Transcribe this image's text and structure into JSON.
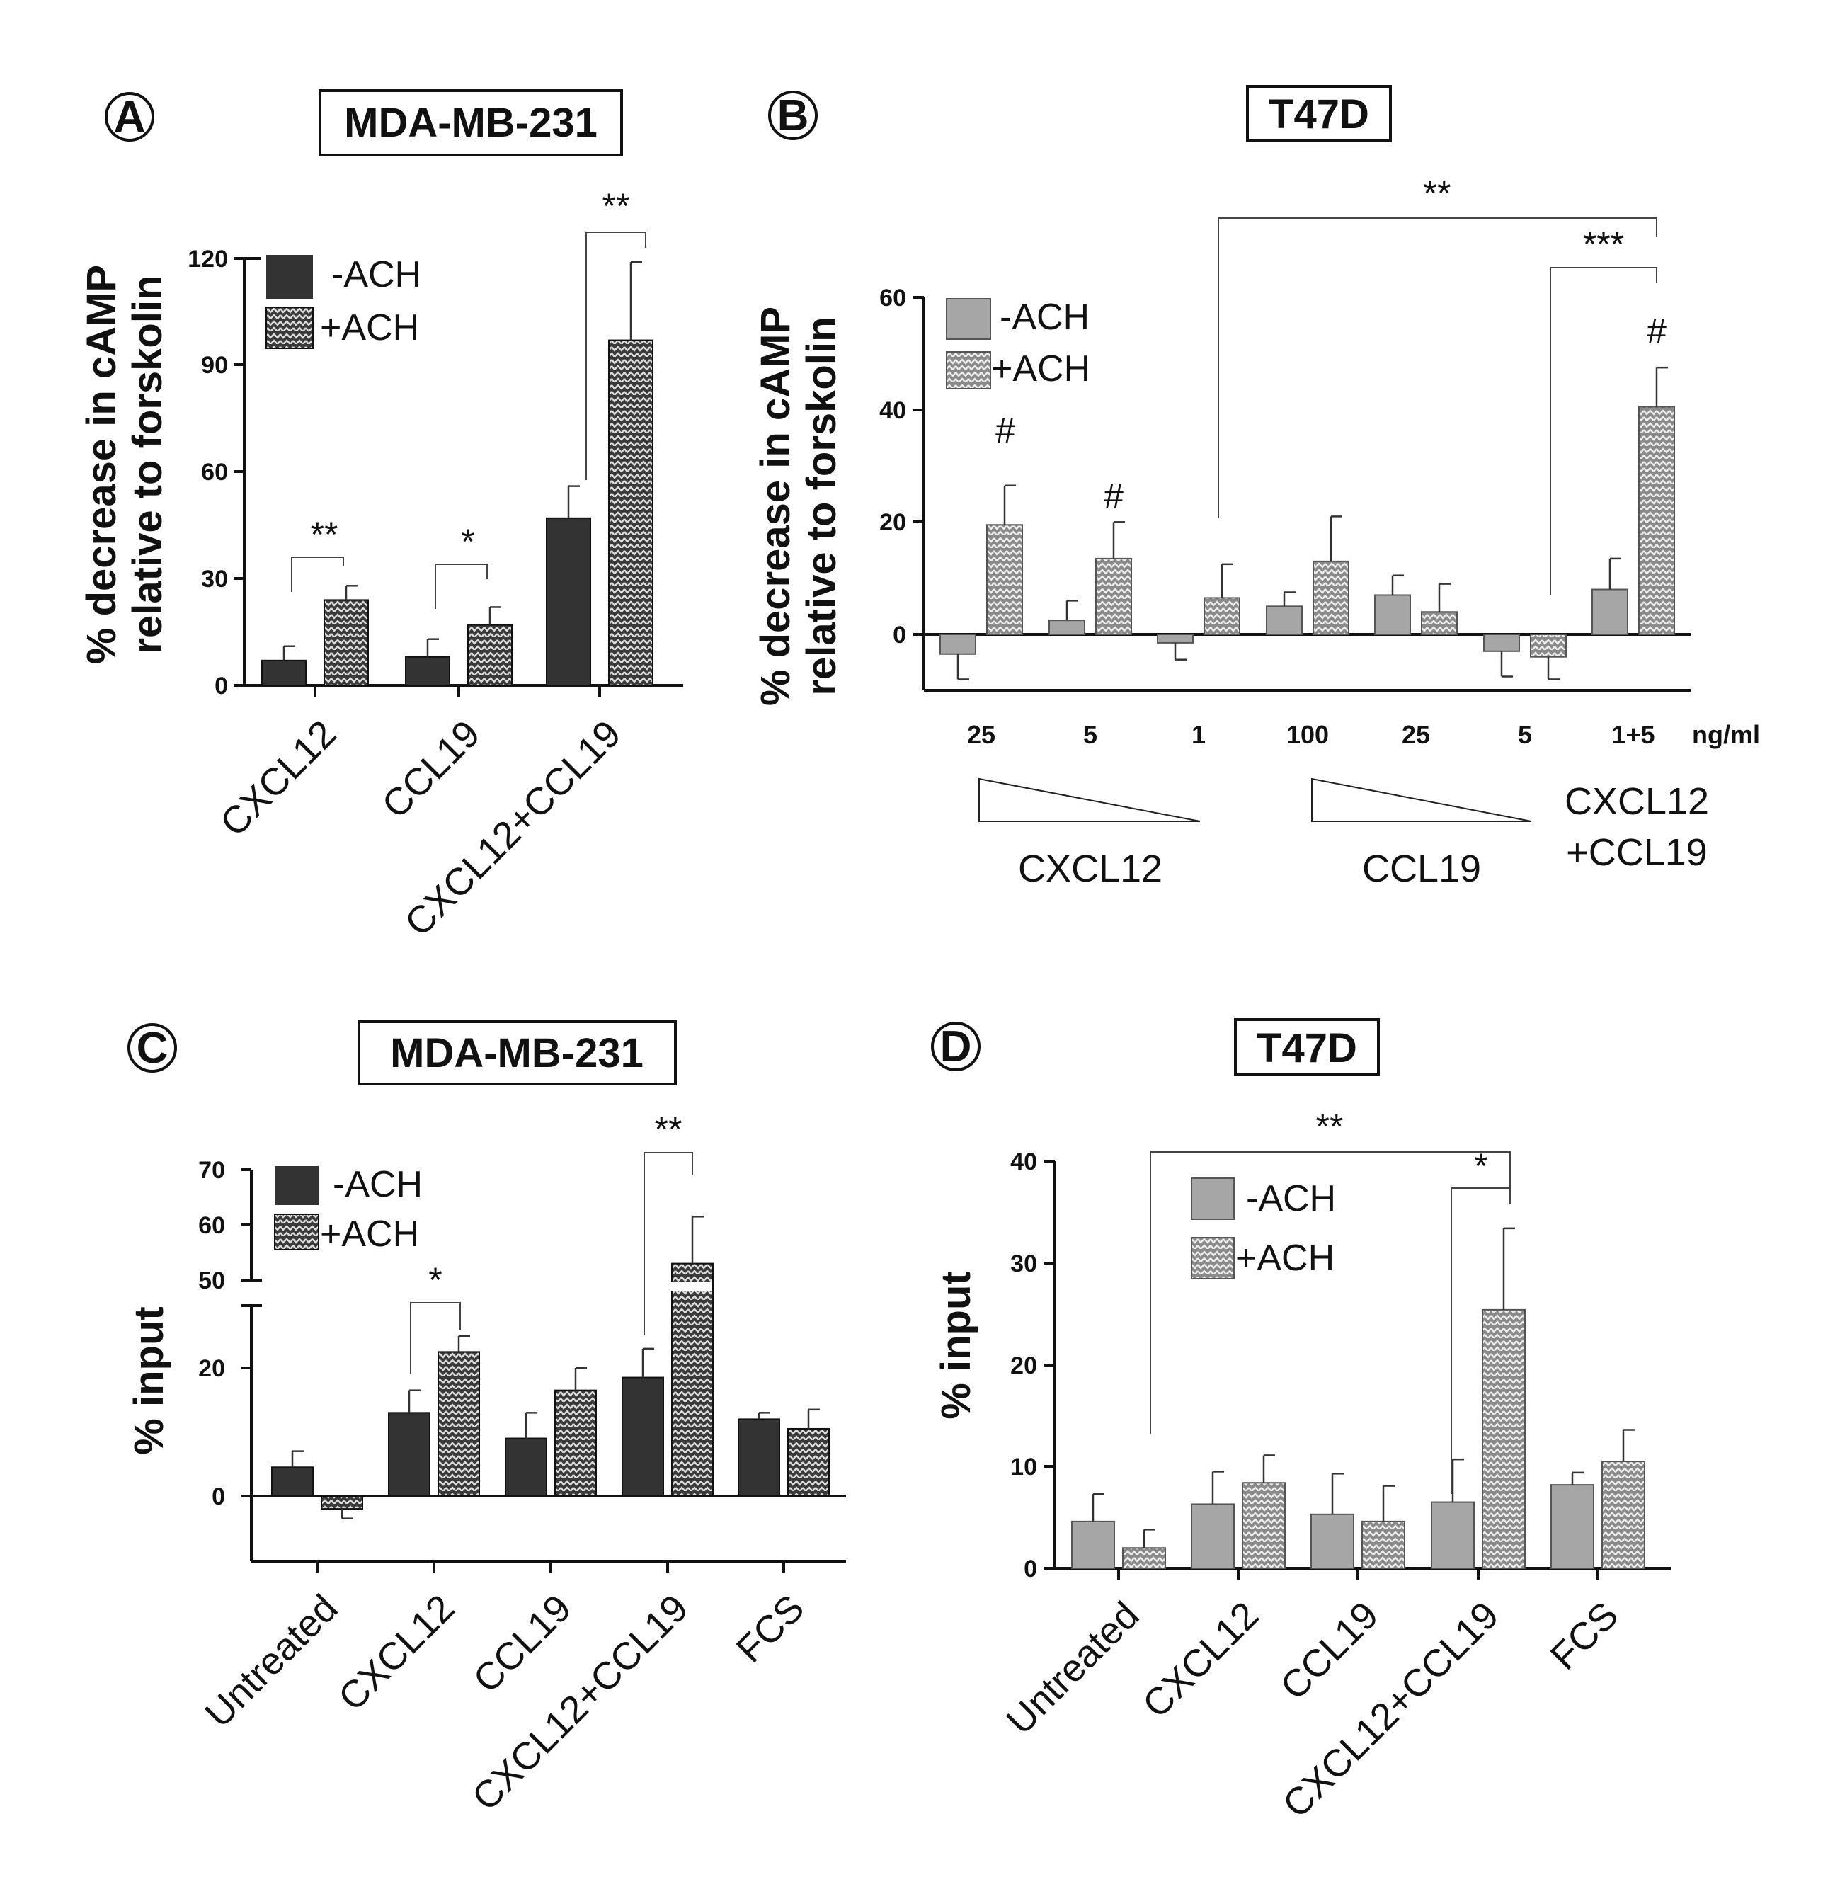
{
  "colors": {
    "dark": "#333333",
    "gray": "#a6a6a6",
    "text": "#111111"
  },
  "chart_data": [
    {
      "panel": "A",
      "type": "bar",
      "title": "MDA-MB-231",
      "ylabel": [
        "% decrease in cAMP",
        "relative to forskolin"
      ],
      "ylim": [
        0,
        120
      ],
      "yticks": [
        "0",
        "30",
        "60",
        "90",
        "120"
      ],
      "categories": [
        "CXCL12",
        "CCL19",
        "CXCL12+CCL19"
      ],
      "series": [
        {
          "name": "-ACH",
          "values": [
            7,
            8,
            47
          ],
          "errors": [
            4,
            5,
            9
          ]
        },
        {
          "name": "+ACH",
          "values": [
            24,
            17,
            97
          ],
          "errors": [
            4,
            5,
            22
          ]
        }
      ],
      "significance": [
        "**",
        "*",
        "**"
      ]
    },
    {
      "panel": "B",
      "type": "bar",
      "title": "T47D",
      "ylabel": [
        "% decrease in cAMP",
        "relative to forskolin"
      ],
      "ylim": [
        -10,
        60
      ],
      "yticks": [
        "0",
        "20",
        "40",
        "60"
      ],
      "categories": [
        "25",
        "5",
        "1",
        "100",
        "25",
        "5",
        "1+5"
      ],
      "unit_label": "ng/ml",
      "groups": [
        "CXCL12",
        "CCL19",
        "CXCL12",
        "+CCL19"
      ],
      "series": [
        {
          "name": "-ACH",
          "values": [
            -3.5,
            2.5,
            -1.5,
            5,
            7,
            -3,
            8
          ],
          "errors": [
            4.5,
            3.5,
            3,
            2.5,
            3.5,
            4.5,
            5.5
          ]
        },
        {
          "name": "+ACH",
          "values": [
            19.5,
            13.5,
            6.5,
            13,
            4,
            -4,
            40.5
          ],
          "errors": [
            7,
            6.5,
            6,
            8,
            5,
            4,
            7
          ]
        }
      ],
      "hash_marks": [
        "#",
        "#",
        "#"
      ],
      "significance": [
        "**",
        "***"
      ]
    },
    {
      "panel": "C",
      "type": "bar",
      "title": "MDA-MB-231",
      "ylabel": "% input",
      "ylim": [
        -10,
        70
      ],
      "yticks": [
        "0",
        "20",
        "50",
        "60",
        "70"
      ],
      "axis_break": [
        30,
        50
      ],
      "categories": [
        "Untreated",
        "CXCL12",
        "CCL19",
        "CXCL12+CCL19",
        "FCS"
      ],
      "series": [
        {
          "name": "-ACH",
          "values": [
            4.5,
            13,
            9,
            18.5,
            12
          ],
          "errors": [
            2.5,
            3.5,
            4,
            4.5,
            1
          ]
        },
        {
          "name": "+ACH",
          "values": [
            -2,
            22.5,
            16.5,
            53,
            10.5
          ],
          "errors": [
            1.5,
            2.5,
            3.5,
            8.5,
            3
          ]
        }
      ],
      "significance": [
        "*",
        "**"
      ]
    },
    {
      "panel": "D",
      "type": "bar",
      "title": "T47D",
      "ylabel": "% input",
      "ylim": [
        0,
        40
      ],
      "yticks": [
        "0",
        "10",
        "20",
        "30",
        "40"
      ],
      "categories": [
        "Untreated",
        "CXCL12",
        "CCL19",
        "CXCL12+CCL19",
        "FCS"
      ],
      "series": [
        {
          "name": "-ACH",
          "values": [
            4.6,
            6.3,
            5.3,
            6.5,
            8.2
          ],
          "errors": [
            2.7,
            3.2,
            4,
            4.2,
            1.2
          ]
        },
        {
          "name": "+ACH",
          "values": [
            2,
            8.4,
            4.6,
            25.4,
            10.5
          ],
          "errors": [
            1.8,
            2.7,
            3.5,
            8,
            3.1
          ]
        }
      ],
      "significance": [
        "**",
        "*"
      ]
    }
  ]
}
